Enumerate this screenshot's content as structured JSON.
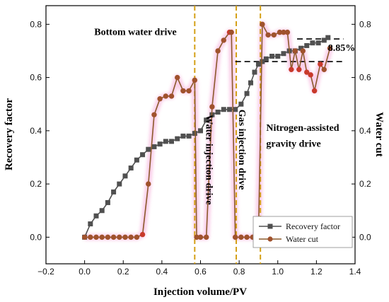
{
  "chart_data": {
    "type": "line",
    "title": "",
    "xlabel": "Injection volume/PV",
    "ylabel_left": "Recovery factor",
    "ylabel_right": "Water cut",
    "xlim": [
      -0.2,
      1.4
    ],
    "ylim_left": [
      -0.1,
      0.87
    ],
    "ylim_right": [
      -0.1,
      0.87
    ],
    "x_ticks": [
      -0.2,
      0.0,
      0.2,
      0.4,
      0.6,
      0.8,
      1.0,
      1.2,
      1.4
    ],
    "x_tick_labels": [
      "−0.2",
      "0.0",
      "0.2",
      "0.4",
      "0.6",
      "0.8",
      "1.0",
      "1.2",
      "1.4"
    ],
    "y_ticks": [
      0.0,
      0.2,
      0.4,
      0.6,
      0.8
    ],
    "y_tick_labels": [
      "0.0",
      "0.2",
      "0.4",
      "0.6",
      "0.8"
    ],
    "grid": false,
    "legend_position": "bottom-right",
    "series": [
      {
        "name": "Recovery factor",
        "axis": "left",
        "color": "#505050",
        "marker": "square",
        "points": [
          [
            0.0,
            0.0
          ],
          [
            0.03,
            0.05
          ],
          [
            0.06,
            0.08
          ],
          [
            0.09,
            0.1
          ],
          [
            0.12,
            0.13
          ],
          [
            0.15,
            0.17
          ],
          [
            0.18,
            0.2
          ],
          [
            0.21,
            0.23
          ],
          [
            0.24,
            0.26
          ],
          [
            0.27,
            0.29
          ],
          [
            0.3,
            0.31
          ],
          [
            0.33,
            0.33
          ],
          [
            0.36,
            0.34
          ],
          [
            0.39,
            0.35
          ],
          [
            0.42,
            0.36
          ],
          [
            0.45,
            0.36
          ],
          [
            0.48,
            0.37
          ],
          [
            0.51,
            0.38
          ],
          [
            0.54,
            0.38
          ],
          [
            0.57,
            0.39
          ],
          [
            0.6,
            0.4
          ],
          [
            0.63,
            0.44
          ],
          [
            0.66,
            0.46
          ],
          [
            0.69,
            0.47
          ],
          [
            0.72,
            0.48
          ],
          [
            0.75,
            0.48
          ],
          [
            0.78,
            0.48
          ],
          [
            0.81,
            0.5
          ],
          [
            0.84,
            0.54
          ],
          [
            0.86,
            0.58
          ],
          [
            0.88,
            0.62
          ],
          [
            0.9,
            0.65
          ],
          [
            0.92,
            0.66
          ],
          [
            0.94,
            0.67
          ],
          [
            0.97,
            0.68
          ],
          [
            1.0,
            0.68
          ],
          [
            1.03,
            0.69
          ],
          [
            1.06,
            0.7
          ],
          [
            1.09,
            0.7
          ],
          [
            1.12,
            0.71
          ],
          [
            1.15,
            0.72
          ],
          [
            1.18,
            0.73
          ],
          [
            1.21,
            0.73
          ],
          [
            1.24,
            0.74
          ],
          [
            1.26,
            0.75
          ]
        ]
      },
      {
        "name": "Water cut",
        "axis": "right",
        "color": "#8B5A2B",
        "marker": "circle",
        "points": [
          [
            0.0,
            0.0
          ],
          [
            0.03,
            0.0
          ],
          [
            0.06,
            0.0
          ],
          [
            0.09,
            0.0
          ],
          [
            0.12,
            0.0
          ],
          [
            0.15,
            0.0
          ],
          [
            0.18,
            0.0
          ],
          [
            0.21,
            0.0
          ],
          [
            0.24,
            0.0
          ],
          [
            0.27,
            0.0
          ],
          [
            0.3,
            0.01
          ],
          [
            0.33,
            0.2
          ],
          [
            0.36,
            0.46
          ],
          [
            0.39,
            0.52
          ],
          [
            0.42,
            0.53
          ],
          [
            0.45,
            0.53
          ],
          [
            0.48,
            0.6
          ],
          [
            0.51,
            0.55
          ],
          [
            0.54,
            0.55
          ],
          [
            0.57,
            0.59
          ],
          [
            0.58,
            0.0
          ],
          [
            0.6,
            0.0
          ],
          [
            0.63,
            0.0
          ],
          [
            0.66,
            0.49
          ],
          [
            0.69,
            0.7
          ],
          [
            0.72,
            0.74
          ],
          [
            0.75,
            0.77
          ],
          [
            0.76,
            0.77
          ],
          [
            0.78,
            0.0
          ],
          [
            0.81,
            0.0
          ],
          [
            0.84,
            0.0
          ],
          [
            0.87,
            0.0
          ],
          [
            0.9,
            0.0
          ],
          [
            0.92,
            0.8
          ],
          [
            0.95,
            0.76
          ],
          [
            0.98,
            0.76
          ],
          [
            1.01,
            0.77
          ],
          [
            1.03,
            0.77
          ],
          [
            1.05,
            0.77
          ],
          [
            1.07,
            0.63
          ],
          [
            1.09,
            0.7
          ],
          [
            1.11,
            0.63
          ],
          [
            1.13,
            0.7
          ],
          [
            1.15,
            0.62
          ],
          [
            1.17,
            0.61
          ],
          [
            1.19,
            0.55
          ],
          [
            1.22,
            0.65
          ],
          [
            1.24,
            0.63
          ],
          [
            1.27,
            0.71
          ]
        ]
      }
    ],
    "dividers": [
      0.57,
      0.785,
      0.91
    ],
    "stage_labels": [
      {
        "text": "Bottom water drive",
        "x": 0.05,
        "y": 0.76
      },
      {
        "text": "Water injection drive",
        "x": 0.63,
        "y": 0.46,
        "rotate": 90
      },
      {
        "text": "Gas injection drive",
        "x": 0.8,
        "y": 0.48,
        "rotate": 90
      },
      {
        "text": "Nitrogen-assisted",
        "x": 0.94,
        "y": 0.4
      },
      {
        "text": "gravity drive",
        "x": 0.94,
        "y": 0.34
      }
    ],
    "reference_lines": [
      {
        "y": 0.745,
        "x_from": 1.1,
        "x_to": 1.34
      },
      {
        "y": 0.66,
        "x_from": 0.78,
        "x_to": 1.34
      }
    ],
    "increment_label": {
      "text": "8.85%",
      "x": 1.26,
      "y": 0.7
    }
  }
}
